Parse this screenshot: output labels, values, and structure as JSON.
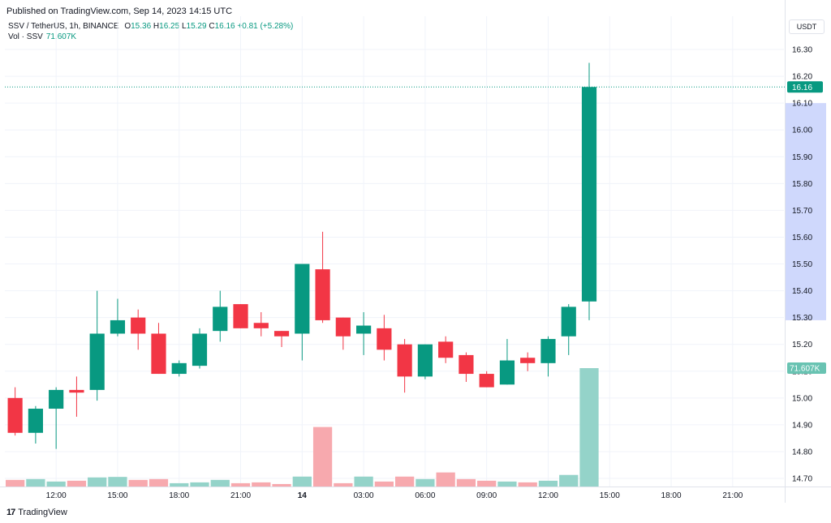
{
  "header": {
    "published": "Published on TradingView.com, Sep 14, 2023 14:15 UTC"
  },
  "legend": {
    "symbol": "SSV / TetherUS, 1h, BINANCE",
    "o_label": "O",
    "o_value": "15.36",
    "h_label": "H",
    "h_value": "16.25",
    "l_label": "L",
    "l_value": "15.29",
    "c_label": "C",
    "c_value": "16.16",
    "change": "+0.81 (+5.28%)"
  },
  "volume_legend": {
    "label": "Vol · SSV",
    "value": "71.607K"
  },
  "currency_button": "USDT",
  "brand": {
    "name": "TradingView"
  },
  "colors": {
    "up": "#089981",
    "down": "#f23645",
    "up_volume": "#94d3c9",
    "down_volume": "#f7a9ae",
    "grid": "#f0f3fa",
    "price_line": "#089981",
    "highlight": "#cfd8fc"
  },
  "chart_data": {
    "type": "candlestick",
    "y_axis": {
      "ticks": [
        "16.30",
        "16.20",
        "16.10",
        "16.00",
        "15.90",
        "15.80",
        "15.70",
        "15.60",
        "15.50",
        "15.40",
        "15.30",
        "15.20",
        "15.10",
        "15.00",
        "14.90",
        "14.80",
        "14.70"
      ],
      "range": [
        14.69,
        16.34
      ]
    },
    "x_axis": {
      "ticks": [
        {
          "label": "12:00",
          "index": 2.5
        },
        {
          "label": "15:00",
          "index": 5.5
        },
        {
          "label": "18:00",
          "index": 8.5
        },
        {
          "label": "21:00",
          "index": 11.5
        },
        {
          "label": "14",
          "index": 14.5,
          "bold": true
        },
        {
          "label": "03:00",
          "index": 17.5
        },
        {
          "label": "06:00",
          "index": 20.5
        },
        {
          "label": "09:00",
          "index": 23.5
        },
        {
          "label": "12:00",
          "index": 26.5
        },
        {
          "label": "15:00",
          "index": 29.5
        },
        {
          "label": "18:00",
          "index": 32.5
        },
        {
          "label": "21:00",
          "index": 35.5
        }
      ]
    },
    "slots": 38,
    "candles": [
      {
        "o": 15.0,
        "h": 15.04,
        "l": 14.86,
        "c": 14.87,
        "v": 4.0
      },
      {
        "o": 14.87,
        "h": 14.97,
        "l": 14.83,
        "c": 14.96,
        "v": 4.5
      },
      {
        "o": 14.96,
        "h": 15.04,
        "l": 14.81,
        "c": 15.03,
        "v": 3.0
      },
      {
        "o": 15.03,
        "h": 15.08,
        "l": 14.93,
        "c": 15.02,
        "v": 3.5
      },
      {
        "o": 15.03,
        "h": 15.4,
        "l": 14.99,
        "c": 15.24,
        "v": 5.5
      },
      {
        "o": 15.24,
        "h": 15.37,
        "l": 15.23,
        "c": 15.29,
        "v": 5.8
      },
      {
        "o": 15.3,
        "h": 15.33,
        "l": 15.18,
        "c": 15.24,
        "v": 4.0
      },
      {
        "o": 15.24,
        "h": 15.28,
        "l": 15.09,
        "c": 15.09,
        "v": 4.5
      },
      {
        "o": 15.09,
        "h": 15.14,
        "l": 15.08,
        "c": 15.13,
        "v": 2.0
      },
      {
        "o": 15.12,
        "h": 15.26,
        "l": 15.11,
        "c": 15.24,
        "v": 2.5
      },
      {
        "o": 15.25,
        "h": 15.4,
        "l": 15.21,
        "c": 15.34,
        "v": 4.0
      },
      {
        "o": 15.35,
        "h": 15.35,
        "l": 15.26,
        "c": 15.26,
        "v": 2.0
      },
      {
        "o": 15.28,
        "h": 15.32,
        "l": 15.23,
        "c": 15.26,
        "v": 2.5
      },
      {
        "o": 15.25,
        "h": 15.25,
        "l": 15.19,
        "c": 15.23,
        "v": 1.5
      },
      {
        "o": 15.24,
        "h": 15.5,
        "l": 15.14,
        "c": 15.5,
        "v": 6.0
      },
      {
        "o": 15.48,
        "h": 15.62,
        "l": 15.28,
        "c": 15.29,
        "v": 36.0
      },
      {
        "o": 15.3,
        "h": 15.3,
        "l": 15.18,
        "c": 15.23,
        "v": 2.0
      },
      {
        "o": 15.24,
        "h": 15.32,
        "l": 15.16,
        "c": 15.27,
        "v": 6.0
      },
      {
        "o": 15.26,
        "h": 15.31,
        "l": 15.14,
        "c": 15.18,
        "v": 3.0
      },
      {
        "o": 15.2,
        "h": 15.22,
        "l": 15.02,
        "c": 15.08,
        "v": 6.0
      },
      {
        "o": 15.08,
        "h": 15.2,
        "l": 15.07,
        "c": 15.2,
        "v": 4.5
      },
      {
        "o": 15.21,
        "h": 15.23,
        "l": 15.13,
        "c": 15.15,
        "v": 8.5
      },
      {
        "o": 15.16,
        "h": 15.17,
        "l": 15.06,
        "c": 15.09,
        "v": 4.5
      },
      {
        "o": 15.09,
        "h": 15.1,
        "l": 15.04,
        "c": 15.04,
        "v": 3.5
      },
      {
        "o": 15.05,
        "h": 15.22,
        "l": 15.05,
        "c": 15.14,
        "v": 3.0
      },
      {
        "o": 15.15,
        "h": 15.17,
        "l": 15.1,
        "c": 15.13,
        "v": 2.5
      },
      {
        "o": 15.13,
        "h": 15.23,
        "l": 15.08,
        "c": 15.22,
        "v": 3.5
      },
      {
        "o": 15.23,
        "h": 15.35,
        "l": 15.16,
        "c": 15.34,
        "v": 7.0
      },
      {
        "o": 15.36,
        "h": 16.25,
        "l": 15.29,
        "c": 16.16,
        "v": 71.607
      }
    ],
    "last_price": "16.16",
    "last_volume_label": "71.607K",
    "highlight_range": [
      15.29,
      16.1
    ]
  }
}
